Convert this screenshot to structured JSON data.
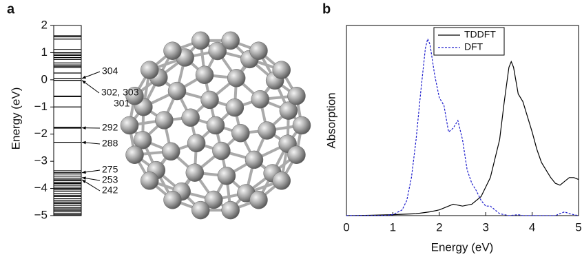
{
  "panel_a": {
    "letter": "a",
    "ylabel": "Energy (eV)",
    "ylim": [
      -5,
      2
    ],
    "yticks": [
      {
        "value": -5,
        "label": "−5"
      },
      {
        "value": -4,
        "label": "−4"
      },
      {
        "value": -3,
        "label": "−3"
      },
      {
        "value": -2,
        "label": "−2"
      },
      {
        "value": -1,
        "label": "−1"
      },
      0,
      1,
      2
    ],
    "levels": [
      1.62,
      1.58,
      1.5,
      1.12,
      1.0,
      0.95,
      0.9,
      0.82,
      0.75,
      0.62,
      0.55,
      0.5,
      0.45,
      0.25,
      0.05,
      -0.02,
      -0.6,
      -0.62,
      -1.0,
      -1.75,
      -1.78,
      -2.3,
      -3.35,
      -3.42,
      -3.47,
      -3.55,
      -3.62,
      -3.68,
      -3.72,
      -3.78,
      -3.82,
      -3.88,
      -3.95,
      -4.0,
      -4.05,
      -4.1,
      -4.18,
      -4.25,
      -4.3,
      -4.38,
      -4.45,
      -4.5,
      -4.55,
      -4.62,
      -4.7,
      -4.75,
      -4.8,
      -4.86,
      -4.92,
      -4.97
    ],
    "annotations": [
      {
        "text": "304",
        "energy": 0.05
      },
      {
        "text": "302, 303",
        "energy": -0.02
      },
      {
        "text": "301"
      },
      {
        "text": "292",
        "energy": -1.77
      },
      {
        "text": "288",
        "energy": -2.3
      },
      {
        "text": "275",
        "energy": -3.42
      },
      {
        "text": "253",
        "energy": -3.6
      },
      {
        "text": "242",
        "energy": -3.68
      }
    ]
  },
  "chart_data": {
    "type": "line",
    "letter": "b",
    "xlabel": "Energy (eV)",
    "ylabel": "Absorption",
    "xlim": [
      0,
      5
    ],
    "ylim": [
      0,
      1
    ],
    "xticks": [
      0,
      1,
      2,
      3,
      4,
      5
    ],
    "legend": "top",
    "series": [
      {
        "name": "TDDFT",
        "color": "#000000",
        "dash": false,
        "x": [
          0,
          0.5,
          1.0,
          1.5,
          1.8,
          2.0,
          2.2,
          2.3,
          2.5,
          2.7,
          2.9,
          3.1,
          3.3,
          3.4,
          3.5,
          3.55,
          3.6,
          3.7,
          3.8,
          3.9,
          4.0,
          4.1,
          4.2,
          4.3,
          4.4,
          4.5,
          4.6,
          4.7,
          4.8,
          4.9,
          5.0
        ],
        "values": [
          0,
          0.002,
          0.005,
          0.01,
          0.02,
          0.03,
          0.05,
          0.06,
          0.05,
          0.06,
          0.1,
          0.2,
          0.4,
          0.6,
          0.78,
          0.81,
          0.78,
          0.64,
          0.6,
          0.52,
          0.44,
          0.35,
          0.28,
          0.24,
          0.2,
          0.17,
          0.16,
          0.18,
          0.2,
          0.2,
          0.19
        ]
      },
      {
        "name": "DFT",
        "color": "#1a1acc",
        "dash": true,
        "x": [
          0,
          0.8,
          1.0,
          1.2,
          1.3,
          1.4,
          1.5,
          1.6,
          1.7,
          1.75,
          1.8,
          1.9,
          2.0,
          2.1,
          2.2,
          2.3,
          2.4,
          2.5,
          2.6,
          2.7,
          2.8,
          2.9,
          3.0,
          3.1,
          3.2,
          3.3,
          3.5,
          3.7,
          3.8,
          4.5,
          4.7,
          4.8,
          5.0
        ],
        "values": [
          0,
          0,
          0.005,
          0.03,
          0.08,
          0.2,
          0.4,
          0.65,
          0.88,
          0.93,
          0.9,
          0.74,
          0.62,
          0.58,
          0.44,
          0.46,
          0.5,
          0.4,
          0.24,
          0.17,
          0.13,
          0.08,
          0.05,
          0.05,
          0.03,
          0.01,
          0,
          0.005,
          0,
          0,
          0.02,
          0.01,
          0
        ]
      }
    ]
  }
}
